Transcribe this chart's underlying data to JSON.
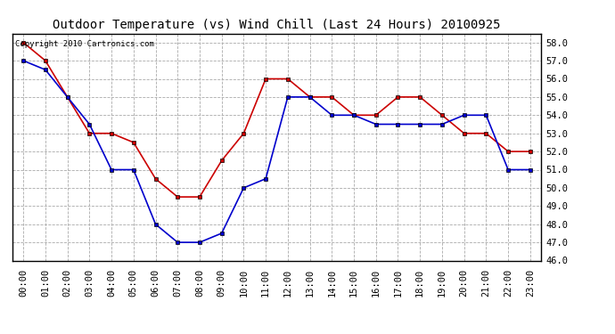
{
  "title": "Outdoor Temperature (vs) Wind Chill (Last 24 Hours) 20100925",
  "copyright_text": "Copyright 2010 Cartronics.com",
  "x_labels": [
    "00:00",
    "01:00",
    "02:00",
    "03:00",
    "04:00",
    "05:00",
    "06:00",
    "07:00",
    "08:00",
    "09:00",
    "10:00",
    "11:00",
    "12:00",
    "13:00",
    "14:00",
    "15:00",
    "16:00",
    "17:00",
    "18:00",
    "19:00",
    "20:00",
    "21:00",
    "22:00",
    "23:00"
  ],
  "red_temp": [
    58.0,
    57.0,
    55.0,
    53.0,
    53.0,
    52.5,
    50.5,
    49.5,
    49.5,
    51.5,
    53.0,
    56.0,
    56.0,
    55.0,
    55.0,
    54.0,
    54.0,
    55.0,
    55.0,
    54.0,
    53.0,
    53.0,
    52.0,
    52.0
  ],
  "blue_wc": [
    57.0,
    56.5,
    55.0,
    53.5,
    51.0,
    51.0,
    48.0,
    47.0,
    47.0,
    47.5,
    50.0,
    50.5,
    55.0,
    55.0,
    54.0,
    54.0,
    53.5,
    53.5,
    53.5,
    53.5,
    54.0,
    54.0,
    51.0,
    51.0
  ],
  "red_color": "#cc0000",
  "blue_color": "#0000cc",
  "bg_color": "#ffffff",
  "grid_color": "#aaaaaa",
  "ylim_min": 46.0,
  "ylim_max": 58.5,
  "y_ticks": [
    46.0,
    47.0,
    48.0,
    49.0,
    50.0,
    51.0,
    52.0,
    53.0,
    54.0,
    55.0,
    56.0,
    57.0,
    58.0
  ],
  "title_fontsize": 10,
  "tick_fontsize": 7.5,
  "copyright_fontsize": 6.5,
  "marker": "s",
  "marker_size": 3.5,
  "linewidth": 1.2
}
